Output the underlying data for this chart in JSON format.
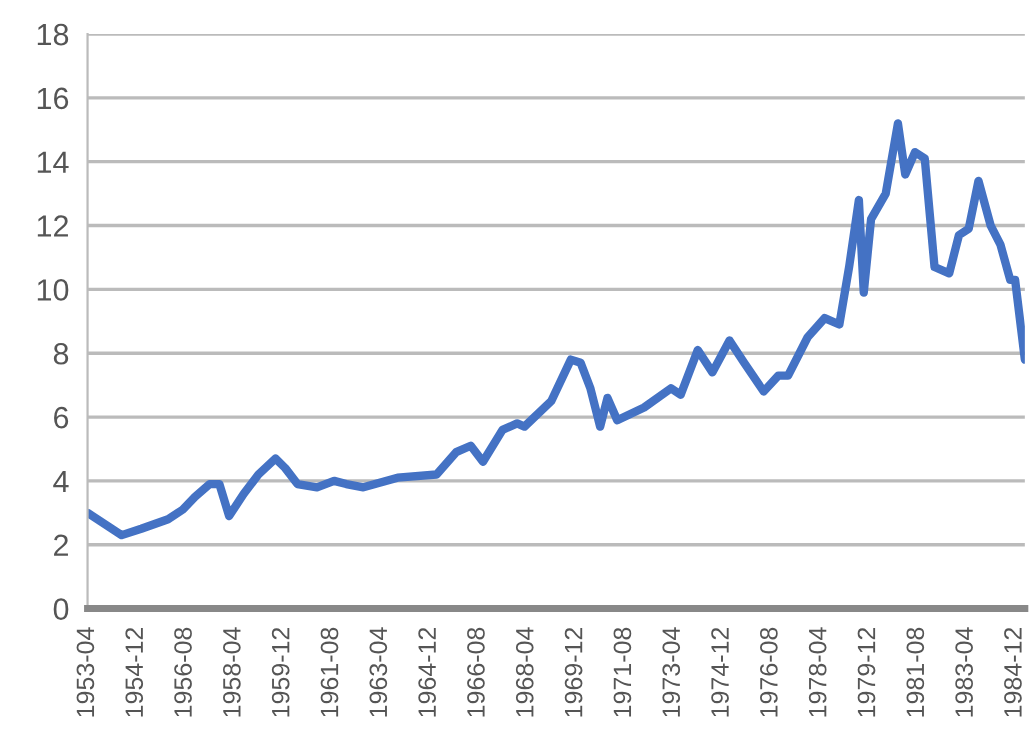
{
  "chart_data": {
    "type": "line",
    "x": [
      "1953-04",
      "1953-06",
      "1954-06",
      "1955-02",
      "1956-01",
      "1956-07",
      "1956-12",
      "1957-06",
      "1957-10",
      "1958-02",
      "1958-08",
      "1959-02",
      "1959-09",
      "1960-01",
      "1960-06",
      "1961-02",
      "1961-09",
      "1962-02",
      "1962-09",
      "1963-11",
      "1965-03",
      "1965-11",
      "1966-05",
      "1966-10",
      "1967-06",
      "1967-12",
      "1968-03",
      "1969-02",
      "1969-10",
      "1970-02",
      "1970-06",
      "1970-10",
      "1971-01",
      "1971-05",
      "1972-04",
      "1973-03",
      "1973-07",
      "1974-02",
      "1974-08",
      "1975-03",
      "1975-09",
      "1976-05",
      "1976-11",
      "1977-03",
      "1977-11",
      "1978-06",
      "1978-12",
      "1979-04",
      "1979-08",
      "1979-10",
      "1980-01",
      "1980-07",
      "1980-12",
      "1981-03",
      "1981-07",
      "1981-11",
      "1982-03",
      "1982-09",
      "1983-01",
      "1983-05",
      "1983-09",
      "1984-02",
      "1984-06",
      "1984-10",
      "1984-12",
      "1985-04"
    ],
    "series": [
      {
        "color": "#4472c4",
        "values": [
          3.0,
          2.9,
          2.3,
          2.5,
          2.8,
          3.1,
          3.5,
          3.9,
          3.9,
          2.9,
          3.6,
          4.2,
          4.7,
          4.4,
          3.9,
          3.8,
          4.0,
          3.9,
          3.8,
          4.1,
          4.2,
          4.9,
          5.1,
          4.6,
          5.6,
          5.8,
          5.7,
          6.5,
          7.8,
          7.7,
          6.9,
          5.7,
          6.6,
          5.9,
          6.3,
          6.9,
          6.7,
          8.1,
          7.4,
          8.4,
          7.7,
          6.8,
          7.3,
          7.3,
          8.5,
          9.1,
          8.9,
          10.7,
          12.8,
          9.9,
          12.2,
          13.0,
          15.2,
          13.6,
          14.3,
          14.1,
          10.7,
          10.5,
          11.7,
          11.9,
          13.4,
          12.0,
          11.4,
          10.3,
          10.3,
          7.8
        ]
      }
    ],
    "xlim": [
      "1953-04",
      "1985-04"
    ],
    "xticks": [
      "1953-04",
      "1954-12",
      "1956-08",
      "1958-04",
      "1959-12",
      "1961-08",
      "1963-04",
      "1964-12",
      "1966-08",
      "1968-04",
      "1969-12",
      "1971-08",
      "1973-04",
      "1974-12",
      "1976-08",
      "1978-04",
      "1979-12",
      "1981-08",
      "1983-04",
      "1984-12"
    ],
    "ylim": [
      0,
      18
    ],
    "yticks": [
      0,
      2,
      4,
      6,
      8,
      10,
      12,
      14,
      16,
      18
    ],
    "grid": "y",
    "marker": "none",
    "line_style": "solid"
  }
}
